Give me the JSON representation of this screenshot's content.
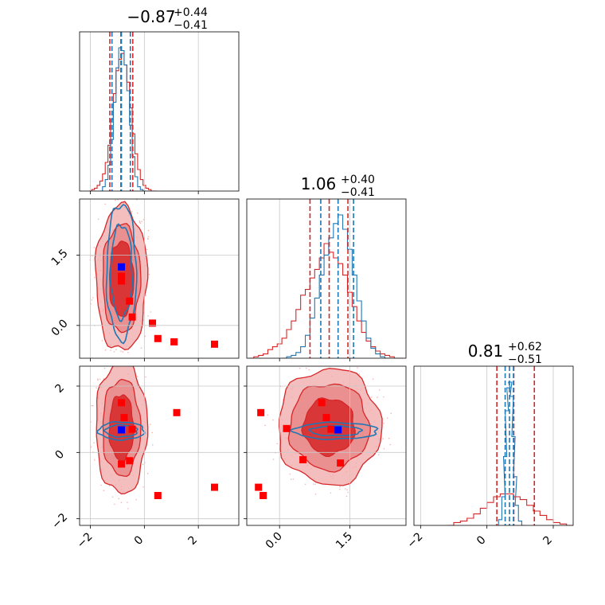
{
  "colors": {
    "red": "#d62728",
    "red_light": "#f0a8a8",
    "red_mid": "#e88080",
    "blue": "#1f77b4",
    "grid": "#c8c8c8",
    "marker_red": "#ff0000",
    "marker_blue": "#0000ff"
  },
  "chart_data": {
    "type": "corner",
    "titles": [
      {
        "median": "−0.87",
        "plus": "+0.44",
        "minus": "−0.41"
      },
      {
        "median": "1.06",
        "plus": "+0.40",
        "minus": "−0.41"
      },
      {
        "median": "0.81",
        "plus": "+0.62",
        "minus": "−0.51"
      }
    ],
    "ranges": [
      [
        -2.4,
        3.5
      ],
      [
        -0.7,
        2.7
      ],
      [
        -2.2,
        2.6
      ]
    ],
    "ticks": [
      {
        "values": [
          -2,
          0,
          2
        ],
        "labels": [
          "−2",
          "0",
          "2"
        ]
      },
      {
        "values": [
          0.0,
          1.5
        ],
        "labels": [
          "0.0",
          "1.5"
        ]
      },
      {
        "values": [
          -2,
          0,
          2
        ],
        "labels": [
          "−2",
          "0",
          "2"
        ]
      }
    ],
    "quantiles": {
      "red": [
        [
          -1.28,
          -0.87,
          -0.43
        ],
        [
          0.65,
          1.06,
          1.46
        ],
        [
          0.3,
          0.81,
          1.43
        ]
      ],
      "blue": [
        [
          -1.2,
          -0.85,
          -0.52
        ],
        [
          0.88,
          1.25,
          1.58
        ],
        [
          0.55,
          0.68,
          0.8
        ]
      ]
    },
    "histograms": [
      {
        "red": {
          "x": [
            -2.0,
            -1.9,
            -1.8,
            -1.7,
            -1.6,
            -1.5,
            -1.4,
            -1.3,
            -1.2,
            -1.1,
            -1.0,
            -0.9,
            -0.8,
            -0.7,
            -0.6,
            -0.5,
            -0.4,
            -0.3,
            -0.2,
            -0.1,
            0.0,
            0.1,
            0.2,
            0.3,
            0.4
          ],
          "y": [
            0,
            1,
            2,
            4,
            7,
            12,
            20,
            32,
            50,
            68,
            84,
            92,
            96,
            88,
            76,
            58,
            40,
            26,
            15,
            8,
            4,
            2,
            1,
            0,
            0
          ]
        },
        "blue": {
          "x": [
            -1.6,
            -1.5,
            -1.4,
            -1.3,
            -1.2,
            -1.1,
            -1.0,
            -0.9,
            -0.8,
            -0.7,
            -0.6,
            -0.5,
            -0.4,
            -0.3,
            -0.2,
            -0.1,
            0.0
          ],
          "y": [
            0,
            3,
            8,
            18,
            36,
            62,
            86,
            100,
            98,
            88,
            70,
            46,
            24,
            10,
            3,
            1,
            0
          ]
        }
      },
      {
        "red": {
          "x": [
            -0.6,
            -0.5,
            -0.4,
            -0.3,
            -0.2,
            -0.1,
            0.0,
            0.1,
            0.2,
            0.3,
            0.4,
            0.5,
            0.6,
            0.7,
            0.8,
            0.9,
            1.0,
            1.1,
            1.2,
            1.3,
            1.4,
            1.5,
            1.6,
            1.7,
            1.8,
            1.9,
            2.0,
            2.1,
            2.2,
            2.3,
            2.4,
            2.5,
            2.6
          ],
          "y": [
            0,
            1,
            2,
            3,
            6,
            8,
            10,
            14,
            20,
            26,
            34,
            44,
            48,
            56,
            62,
            70,
            80,
            74,
            70,
            66,
            58,
            46,
            36,
            26,
            18,
            12,
            8,
            5,
            3,
            2,
            1,
            0,
            0
          ]
        },
        "blue": {
          "x": [
            0.1,
            0.2,
            0.3,
            0.4,
            0.5,
            0.6,
            0.7,
            0.8,
            0.9,
            1.0,
            1.1,
            1.2,
            1.3,
            1.4,
            1.5,
            1.6,
            1.7,
            1.8,
            1.9,
            2.0,
            2.1,
            2.2,
            2.3
          ],
          "y": [
            0,
            1,
            2,
            4,
            8,
            16,
            28,
            42,
            58,
            72,
            84,
            94,
            100,
            90,
            76,
            58,
            40,
            26,
            14,
            7,
            3,
            1,
            0
          ]
        }
      },
      {
        "red": {
          "x": [
            -1.1,
            -0.9,
            -0.7,
            -0.5,
            -0.3,
            -0.1,
            0.1,
            0.3,
            0.5,
            0.7,
            0.9,
            1.1,
            1.3,
            1.5,
            1.7,
            1.9,
            2.1,
            2.3,
            2.5
          ],
          "y": [
            0,
            2,
            3,
            5,
            8,
            12,
            16,
            20,
            22,
            22,
            20,
            18,
            14,
            10,
            7,
            4,
            2,
            1,
            0
          ]
        },
        "blue": {
          "x": [
            0.3,
            0.4,
            0.5,
            0.55,
            0.6,
            0.65,
            0.7,
            0.75,
            0.8,
            0.85,
            0.9,
            1.0,
            1.1
          ],
          "y": [
            0,
            4,
            20,
            48,
            80,
            96,
            100,
            90,
            62,
            34,
            14,
            3,
            0
          ]
        }
      }
    ],
    "panels": [
      {
        "i": 1,
        "j": 0,
        "red_contours": [
          [
            -0.85,
            1.0,
            0.95,
            1.55
          ],
          [
            -0.85,
            1.0,
            0.7,
            1.15
          ],
          [
            -0.85,
            1.0,
            0.45,
            0.8
          ]
        ],
        "blue_contours": [
          [
            -0.85,
            1.15,
            0.55,
            1.45
          ],
          [
            -0.85,
            1.15,
            0.4,
            1.0
          ]
        ],
        "red_markers": [
          [
            -0.85,
            1.05
          ],
          [
            -0.85,
            0.95
          ],
          [
            -0.55,
            0.52
          ],
          [
            -0.45,
            0.18
          ],
          [
            0.3,
            0.05
          ],
          [
            0.5,
            -0.28
          ],
          [
            1.1,
            -0.35
          ],
          [
            2.6,
            -0.4
          ]
        ],
        "blue_markers": [
          [
            -0.85,
            1.25
          ]
        ]
      },
      {
        "i": 2,
        "j": 0,
        "red_contours": [
          [
            -0.85,
            0.75,
            0.95,
            2.0
          ],
          [
            -0.85,
            0.75,
            0.7,
            1.45
          ],
          [
            -0.85,
            0.75,
            0.45,
            1.0
          ]
        ],
        "blue_contours": [
          [
            -0.85,
            0.65,
            0.85,
            0.27
          ],
          [
            -0.85,
            0.65,
            0.6,
            0.18
          ]
        ],
        "red_markers": [
          [
            -0.85,
            1.5
          ],
          [
            -0.75,
            1.05
          ],
          [
            -0.45,
            0.7
          ],
          [
            -0.55,
            -0.25
          ],
          [
            -0.85,
            -0.35
          ],
          [
            0.5,
            -1.3
          ],
          [
            1.2,
            1.2
          ],
          [
            2.6,
            -1.05
          ]
        ],
        "blue_markers": [
          [
            -0.85,
            0.68
          ]
        ]
      },
      {
        "i": 2,
        "j": 1,
        "red_contours": [
          [
            1.06,
            0.78,
            1.1,
            1.75
          ],
          [
            1.06,
            0.78,
            0.85,
            1.3
          ],
          [
            1.06,
            0.78,
            0.55,
            0.85
          ]
        ],
        "blue_contours": [
          [
            1.2,
            0.65,
            0.9,
            0.25
          ],
          [
            1.2,
            0.65,
            0.55,
            0.15
          ]
        ],
        "red_markers": [
          [
            0.9,
            1.5
          ],
          [
            1.0,
            1.05
          ],
          [
            0.15,
            0.72
          ],
          [
            1.1,
            0.7
          ],
          [
            0.5,
            -0.22
          ],
          [
            1.3,
            -0.32
          ],
          [
            -0.4,
            1.2
          ],
          [
            -0.45,
            -1.05
          ],
          [
            -0.35,
            -1.3
          ]
        ],
        "blue_markers": [
          [
            1.25,
            0.68
          ]
        ]
      }
    ]
  }
}
